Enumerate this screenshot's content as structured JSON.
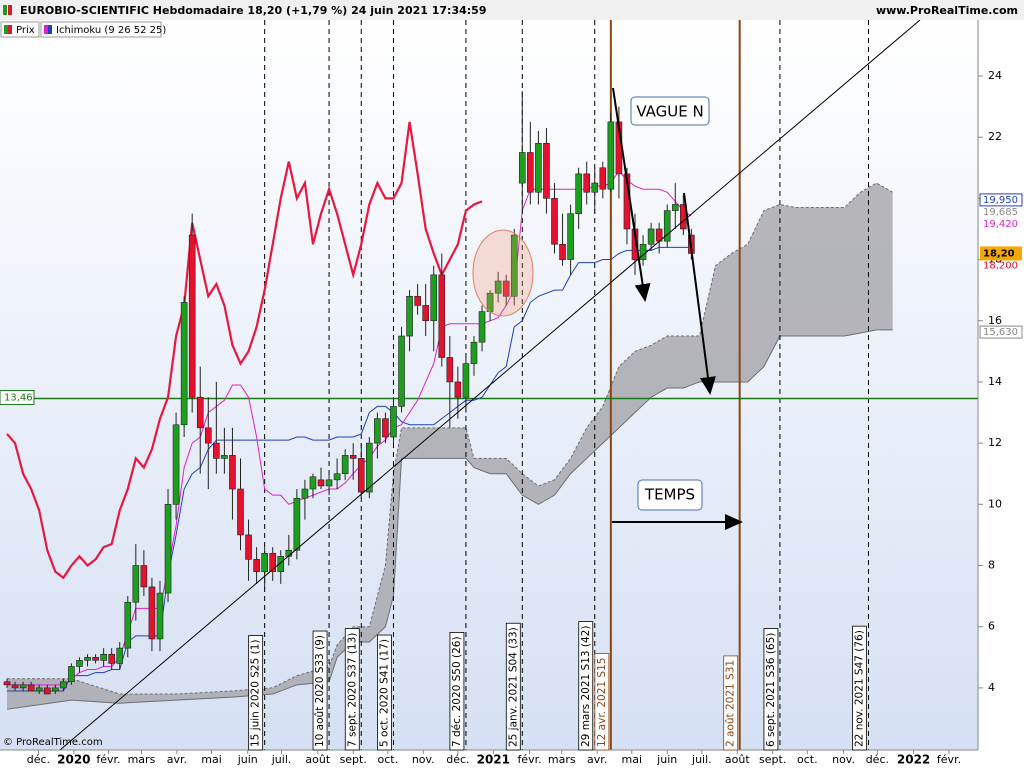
{
  "header": {
    "title": "EUROBIO-SCIENTIFIC Hebdomadaire 18,20 (+1,79 %) 24 juin 2021 17:34:59",
    "site": "www.ProRealTime.com"
  },
  "legend": [
    "Prix",
    "Ichimoku (9 26 52 25)"
  ],
  "copyright": "© ProRealTime.com",
  "chart_data": {
    "type": "candlestick",
    "ylim": [
      1.97,
      25.83
    ],
    "yticks": [
      4,
      6,
      8,
      10,
      12,
      14,
      16,
      18,
      20,
      22,
      24
    ],
    "xlim": [
      -0.87,
      120.6
    ],
    "xticks": [
      {
        "value": 3.9,
        "label": "déc."
      },
      {
        "value": 8.3,
        "label": "2020"
      },
      {
        "value": 12.6,
        "label": "févr."
      },
      {
        "value": 16.7,
        "label": "mars"
      },
      {
        "value": 21.1,
        "label": "avr."
      },
      {
        "value": 25.4,
        "label": "mai"
      },
      {
        "value": 29.9,
        "label": "juin"
      },
      {
        "value": 34.1,
        "label": "juil."
      },
      {
        "value": 38.6,
        "label": "août"
      },
      {
        "value": 43,
        "label": "sept."
      },
      {
        "value": 47.3,
        "label": "oct."
      },
      {
        "value": 51.7,
        "label": "nov."
      },
      {
        "value": 56,
        "label": "déc."
      },
      {
        "value": 60.4,
        "label": "2021"
      },
      {
        "value": 64.9,
        "label": "févr."
      },
      {
        "value": 68.9,
        "label": "mars"
      },
      {
        "value": 73.3,
        "label": "avr."
      },
      {
        "value": 77.6,
        "label": "mai"
      },
      {
        "value": 82,
        "label": "juin"
      },
      {
        "value": 86.3,
        "label": "juil."
      },
      {
        "value": 90.7,
        "label": "août"
      },
      {
        "value": 95.1,
        "label": "sept."
      },
      {
        "value": 99.4,
        "label": "oct."
      },
      {
        "value": 103.9,
        "label": "nov."
      },
      {
        "value": 108.1,
        "label": "déc."
      },
      {
        "value": 112.6,
        "label": "2022"
      },
      {
        "value": 117,
        "label": "févr."
      }
    ],
    "candles": {
      "up_color": "#1e9e1e",
      "down_color": "#e3122e",
      "open": [
        4.2,
        4.1,
        4.0,
        4.1,
        3.9,
        4.0,
        3.9,
        4.0,
        4.2,
        4.7,
        4.9,
        5.0,
        4.9,
        5.1,
        4.8,
        5.3,
        6.8,
        8.0,
        7.3,
        5.6,
        7.1,
        10.0,
        12.6,
        18.8,
        13.5,
        12.5,
        12.0,
        11.5,
        11.6,
        10.5,
        9.0,
        8.2,
        7.8,
        8.4,
        7.8,
        8.3,
        8.5,
        10.2,
        10.5,
        10.8,
        10.6,
        10.8,
        11.0,
        11.6,
        11.5,
        10.4,
        12.0,
        12.8,
        12.2,
        13.2,
        15.5,
        16.8,
        16.5,
        16.0,
        17.5,
        14.8,
        14.0,
        13.5,
        14.6,
        15.3,
        16.3,
        16.9,
        17.3,
        16.8,
        20.5,
        21.5,
        20.2,
        21.8,
        20.0,
        18.5,
        18.0,
        19.5,
        20.8,
        20.2,
        21.0,
        20.3,
        22.5,
        20.8,
        19.0,
        18.0,
        18.5,
        19.0,
        18.6,
        19.6,
        19.8,
        18.8
      ],
      "high": [
        4.3,
        4.2,
        4.2,
        4.2,
        4.1,
        4.1,
        4.1,
        4.3,
        4.8,
        5.0,
        5.1,
        5.1,
        5.3,
        5.3,
        5.5,
        7.0,
        8.7,
        8.5,
        7.6,
        7.5,
        10.5,
        13.0,
        16.8,
        19.5,
        14.5,
        13.5,
        14.0,
        12.5,
        12.5,
        11.5,
        9.5,
        8.6,
        8.6,
        8.6,
        8.5,
        9.0,
        10.5,
        10.8,
        11.0,
        11.2,
        11.0,
        11.5,
        11.8,
        12.0,
        12.0,
        12.2,
        13.0,
        13.0,
        13.5,
        15.8,
        17.0,
        17.2,
        17.2,
        17.8,
        18.2,
        15.5,
        14.5,
        14.8,
        15.5,
        16.5,
        17.0,
        17.6,
        17.5,
        19.0,
        23.5,
        22.5,
        22.2,
        22.3,
        20.5,
        19.5,
        19.8,
        21.0,
        21.2,
        21.0,
        21.2,
        22.8,
        23.0,
        21.0,
        19.5,
        18.8,
        19.2,
        19.2,
        19.8,
        20.5,
        20.1,
        19.0
      ],
      "low": [
        4.0,
        3.9,
        3.9,
        3.9,
        3.8,
        3.8,
        3.8,
        3.9,
        4.1,
        4.5,
        4.7,
        4.8,
        4.7,
        4.6,
        4.6,
        5.0,
        6.2,
        7.0,
        5.2,
        5.2,
        6.8,
        9.5,
        12.2,
        13.0,
        11.0,
        10.5,
        11.0,
        11.0,
        9.5,
        8.5,
        7.5,
        7.4,
        7.2,
        7.5,
        7.4,
        8.0,
        8.2,
        9.5,
        10.2,
        10.5,
        10.3,
        10.5,
        10.8,
        10.8,
        10.2,
        10.2,
        11.5,
        12.0,
        12.0,
        13.0,
        15.0,
        16.2,
        15.5,
        15.0,
        14.5,
        12.5,
        12.8,
        13.0,
        14.2,
        15.0,
        16.0,
        16.6,
        16.5,
        16.5,
        19.5,
        19.8,
        19.8,
        19.5,
        18.2,
        17.8,
        17.5,
        19.0,
        19.8,
        19.5,
        20.0,
        20.2,
        20.0,
        18.5,
        17.5,
        17.8,
        18.3,
        18.2,
        18.4,
        19.0,
        18.8,
        18.0
      ],
      "close": [
        4.1,
        4.0,
        4.1,
        3.9,
        4.0,
        3.8,
        4.0,
        4.2,
        4.7,
        4.9,
        5.0,
        4.9,
        5.1,
        4.8,
        5.3,
        6.8,
        8.0,
        7.3,
        5.6,
        7.1,
        10.0,
        12.6,
        16.6,
        13.5,
        12.5,
        12.0,
        11.5,
        11.6,
        10.5,
        9.0,
        8.2,
        7.8,
        8.4,
        7.8,
        8.3,
        8.5,
        10.2,
        10.5,
        10.9,
        10.6,
        10.8,
        11.0,
        11.6,
        11.5,
        10.4,
        12.0,
        12.8,
        12.2,
        13.2,
        15.5,
        16.8,
        16.5,
        16.0,
        17.5,
        14.8,
        14.0,
        13.5,
        14.6,
        15.3,
        16.3,
        16.9,
        17.3,
        16.8,
        18.8,
        21.5,
        20.2,
        21.8,
        20.0,
        18.5,
        18.0,
        19.5,
        20.8,
        20.2,
        20.5,
        20.3,
        22.5,
        20.8,
        19.0,
        18.0,
        18.5,
        19.0,
        18.6,
        19.6,
        19.8,
        19.0,
        18.2
      ]
    },
    "chikou": {
      "color": "#e8173f",
      "values": [
        12.3,
        12.0,
        11.0,
        10.5,
        9.8,
        8.5,
        7.8,
        7.6,
        8.0,
        8.3,
        8.0,
        8.2,
        8.6,
        8.7,
        9.8,
        10.5,
        11.5,
        11.2,
        11.8,
        12.8,
        13.5,
        15.5,
        16.5,
        19.2,
        18.0,
        16.8,
        17.2,
        16.5,
        15.2,
        14.6,
        15.0,
        15.8,
        17.0,
        18.5,
        20.0,
        21.2,
        20.0,
        20.5,
        18.5,
        19.5,
        20.3,
        19.5,
        18.5,
        17.5,
        18.5,
        19.8,
        20.5,
        20.0,
        20.0,
        20.5,
        22.5,
        20.8,
        19.0,
        18.2,
        17.5,
        18.0,
        18.5,
        19.6,
        19.8,
        19.9
      ]
    },
    "tenkan": {
      "color": "#e020c8",
      "values": [
        4.1,
        4.1,
        4.1,
        4.1,
        4.1,
        4.1,
        4.1,
        4.1,
        4.3,
        4.5,
        4.6,
        4.6,
        4.7,
        4.7,
        5.0,
        5.8,
        6.6,
        6.6,
        6.6,
        6.6,
        7.9,
        9.3,
        11.2,
        12.0,
        12.2,
        13.0,
        13.2,
        13.4,
        13.9,
        13.9,
        13.5,
        12.2,
        10.5,
        10.3,
        10.3,
        10.0,
        10.1,
        10.2,
        10.3,
        10.4,
        10.5,
        10.5,
        10.7,
        11.0,
        11.3,
        11.5,
        11.9,
        12.1,
        12.5,
        12.6,
        13.0,
        13.4,
        14.0,
        14.6,
        15.8,
        15.9,
        15.9,
        15.9,
        15.9,
        15.9,
        16.0,
        16.1,
        16.5,
        17.0,
        19.6,
        20.3,
        20.3,
        20.3,
        20.3,
        20.3,
        20.3,
        20.3,
        20.3,
        20.4,
        20.4,
        20.5,
        20.9,
        20.6,
        20.4,
        20.3,
        20.3,
        20.3,
        20.2,
        19.9,
        19.6,
        19.42
      ]
    },
    "kijun": {
      "color": "#2040c0",
      "values": [
        3.9,
        3.9,
        3.9,
        3.9,
        3.9,
        3.9,
        3.9,
        3.9,
        4.4,
        4.4,
        4.4,
        4.5,
        4.5,
        4.6,
        4.6,
        5.5,
        5.7,
        5.7,
        5.7,
        5.7,
        7.7,
        9.0,
        10.5,
        11.0,
        11.2,
        11.8,
        12.1,
        12.1,
        12.1,
        12.1,
        12.1,
        12.1,
        12.1,
        12.1,
        12.1,
        12.1,
        12.2,
        12.2,
        12.1,
        12.1,
        12.1,
        12.2,
        12.2,
        12.2,
        12.3,
        13.0,
        13.2,
        13.2,
        13.0,
        12.7,
        12.6,
        12.6,
        12.6,
        12.6,
        12.8,
        13.0,
        13.2,
        13.4,
        13.4,
        13.5,
        13.9,
        14.3,
        14.5,
        15.8,
        16.0,
        16.6,
        16.8,
        16.9,
        17.0,
        17.0,
        17.5,
        17.9,
        17.9,
        17.9,
        18.0,
        18.0,
        18.2,
        18.3,
        18.3,
        18.3,
        18.3,
        18.4,
        18.4,
        18.4,
        18.4,
        18.4
      ]
    },
    "cloud": {
      "color": "#a9a9ae",
      "x": [
        0,
        8,
        14,
        21,
        28,
        33,
        36,
        40,
        41,
        43,
        44,
        45,
        47,
        48,
        49,
        57,
        58,
        60,
        62,
        64,
        66,
        68,
        70,
        72,
        74,
        76,
        78,
        80,
        82,
        84,
        86,
        88,
        90,
        92,
        94,
        96,
        98,
        100,
        104,
        106,
        108,
        110
      ],
      "upper": [
        4.3,
        4.3,
        3.8,
        3.8,
        3.9,
        4.0,
        4.4,
        4.7,
        5.4,
        6.0,
        6.0,
        6.0,
        8.0,
        11.0,
        12.5,
        12.5,
        11.5,
        11.5,
        11.5,
        11.0,
        10.6,
        10.8,
        11.5,
        12.5,
        13.2,
        14.5,
        15.0,
        15.2,
        15.5,
        15.5,
        15.5,
        17.8,
        18.2,
        18.5,
        19.6,
        19.8,
        19.7,
        19.7,
        19.7,
        20.2,
        20.5,
        20.2
      ],
      "lower": [
        3.3,
        3.6,
        3.5,
        3.6,
        3.7,
        3.8,
        4.1,
        4.2,
        5.0,
        5.5,
        5.5,
        5.5,
        6.0,
        7.0,
        11.5,
        11.5,
        11.2,
        11.0,
        11.0,
        10.3,
        10.0,
        10.3,
        11.0,
        11.5,
        12.0,
        12.5,
        13.0,
        13.5,
        13.8,
        13.8,
        14.0,
        14.0,
        14.0,
        14.0,
        14.5,
        15.5,
        15.5,
        15.5,
        15.5,
        15.6,
        15.7,
        15.7
      ]
    },
    "hline": {
      "value": 13.46,
      "label": "13,46",
      "color": "#1a7a1a"
    },
    "price_labels": [
      {
        "value": 19.95,
        "label": "19,950",
        "color": "#2040c0",
        "style": "box"
      },
      {
        "value": 19.685,
        "label": "19,685",
        "color": "#888888",
        "style": "text"
      },
      {
        "value": 19.42,
        "label": "19,420",
        "color": "#e020c8",
        "style": "text"
      },
      {
        "value": 18.2,
        "label": "18,20",
        "color": "#f5a800",
        "style": "fill"
      },
      {
        "value": 18.2,
        "label": "18,200",
        "color": "#e3122e",
        "style": "text"
      },
      {
        "value": 15.63,
        "label": "15,630",
        "color": "#888888",
        "style": "box"
      }
    ],
    "vlines": [
      {
        "x": 32,
        "label": "15 juin 2020 S25 (1)",
        "kind": "dash"
      },
      {
        "x": 40,
        "label": "10 août 2020 S33 (9)",
        "kind": "dash"
      },
      {
        "x": 44,
        "label": "7 sept. 2020 S37 (13)",
        "kind": "dash"
      },
      {
        "x": 48,
        "label": "5 oct. 2020 S41 (17)",
        "kind": "dash"
      },
      {
        "x": 57,
        "label": "7 déc. 2020 S50 (26)",
        "kind": "dash"
      },
      {
        "x": 64,
        "label": "25 janv. 2021 S04 (33)",
        "kind": "dash"
      },
      {
        "x": 73,
        "label": "29 mars 2021 S13 (42)",
        "kind": "dash"
      },
      {
        "x": 75,
        "label": "12 avr. 2021 S15",
        "kind": "solid"
      },
      {
        "x": 91,
        "label": "2 août 2021 S31",
        "kind": "solid"
      },
      {
        "x": 96,
        "label": "6 sept. 2021 S36 (65)",
        "kind": "dash"
      },
      {
        "x": 107,
        "label": "22 nov. 2021 S47 (76)",
        "kind": "dash"
      }
    ],
    "annotations": [
      "VAGUE N",
      "TEMPS"
    ]
  }
}
